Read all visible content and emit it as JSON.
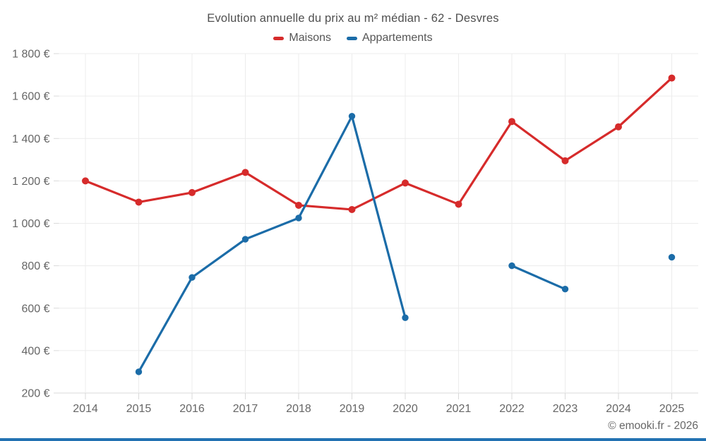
{
  "chart_data": {
    "type": "line",
    "title": "Evolution annuelle du prix au m² médian - 62 - Desvres",
    "categories": [
      "2014",
      "2015",
      "2016",
      "2017",
      "2018",
      "2019",
      "2020",
      "2021",
      "2022",
      "2023",
      "2024",
      "2025"
    ],
    "y_unit": "€",
    "ylim": [
      200,
      1800
    ],
    "ytick_step": 200,
    "grid": true,
    "legend_position": "top",
    "series": [
      {
        "name": "Maisons",
        "color": "#d62b2b",
        "values": [
          1200,
          1100,
          1145,
          1240,
          1085,
          1065,
          1190,
          1090,
          1480,
          1295,
          1455,
          1685
        ]
      },
      {
        "name": "Appartements",
        "color": "#1b6ca8",
        "values": [
          null,
          300,
          745,
          925,
          1025,
          1505,
          555,
          null,
          800,
          690,
          null,
          840
        ]
      }
    ]
  },
  "footer": {
    "copyright": "© emooki.fr - 2026"
  },
  "accent_bar_color": "#2272b2"
}
